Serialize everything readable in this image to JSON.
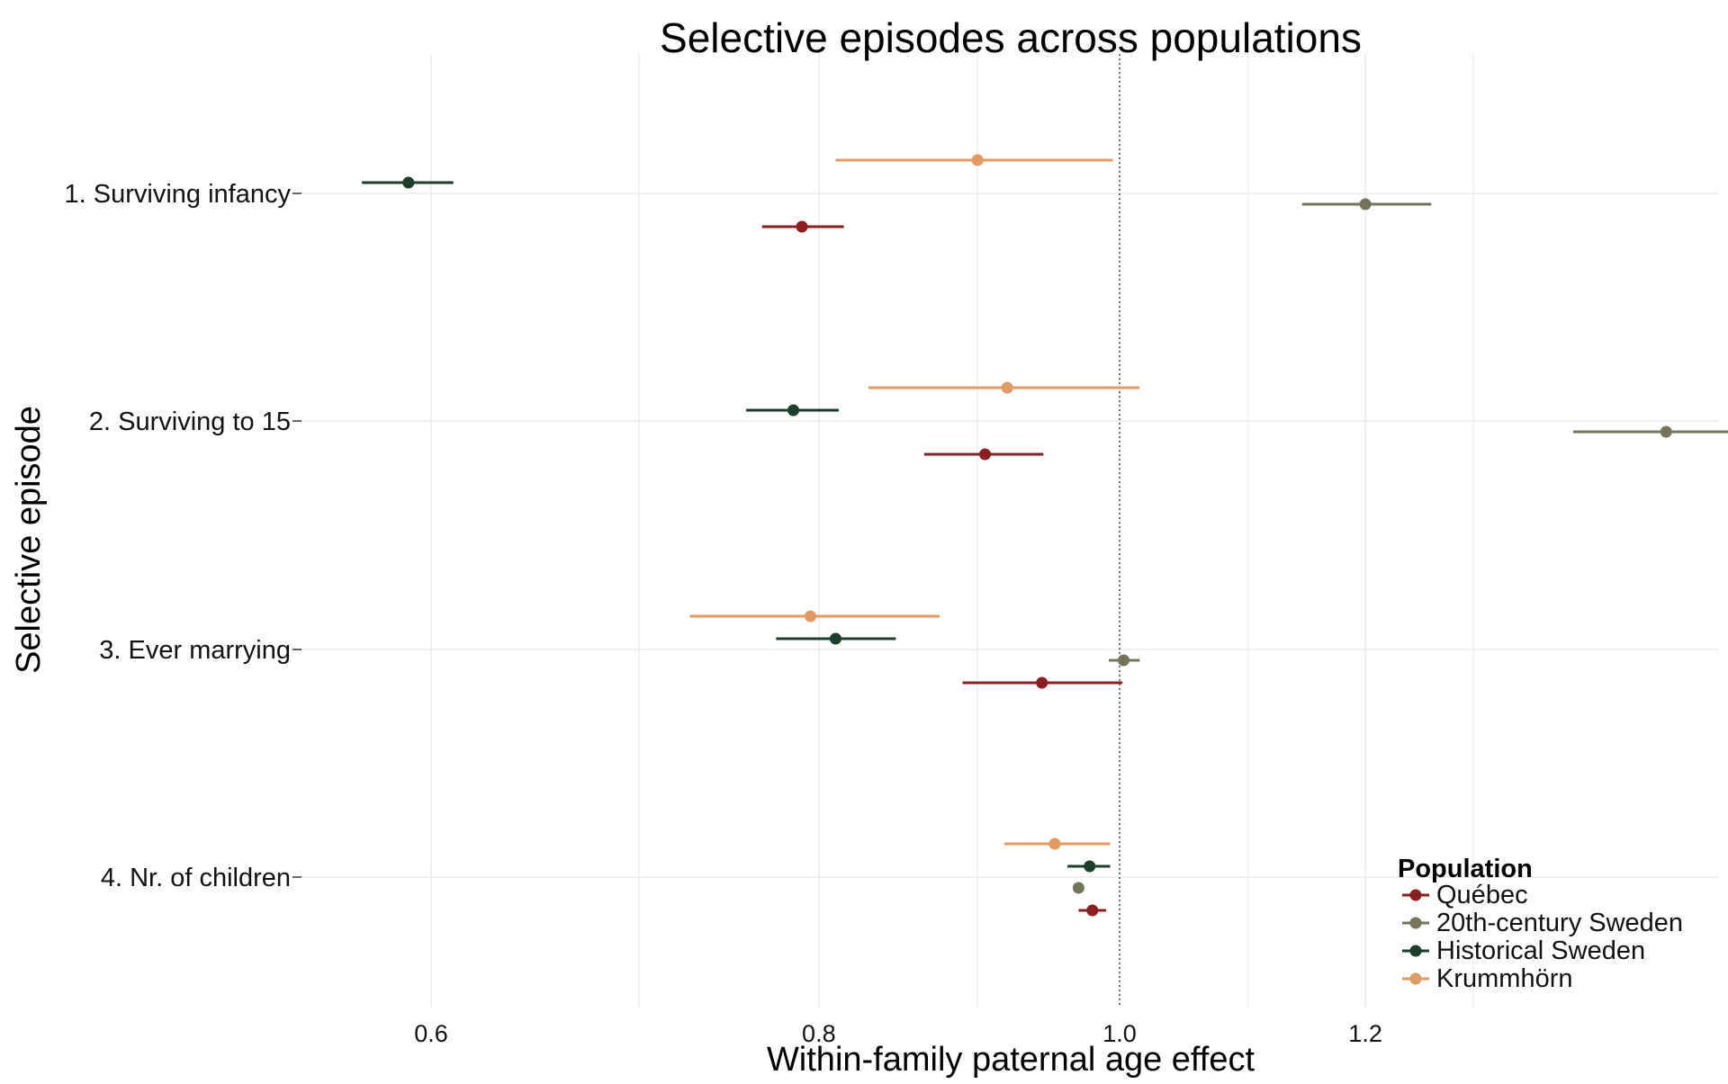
{
  "chart_data": {
    "type": "scatter",
    "title": "Selective episodes across populations",
    "xlabel": "Within-family paternal age effect",
    "ylabel": "Selective episode",
    "x_scale": "log",
    "xlim": [
      0.545,
      1.56
    ],
    "x_ticks": [
      {
        "value": 0.6,
        "label": "0.6"
      },
      {
        "value": 0.8,
        "label": "0.8"
      },
      {
        "value": 1.0,
        "label": "1.0"
      },
      {
        "value": 1.2,
        "label": "1.2"
      }
    ],
    "x_minor_gridlines": [
      0.7,
      0.9,
      1.1,
      1.3
    ],
    "reference_line": {
      "x": 1.0,
      "style": "dotted"
    },
    "categories": [
      "1. Surviving infancy",
      "2. Surviving to 15",
      "3. Ever marrying",
      "4. Nr. of children"
    ],
    "grid": true,
    "legend": {
      "title": "Population",
      "position": "bottom-right"
    },
    "series": [
      {
        "name": "Québec",
        "color": "#8b1e1e",
        "points": [
          {
            "category": "1. Surviving infancy",
            "estimate": 0.79,
            "lower": 0.767,
            "upper": 0.815
          },
          {
            "category": "2. Surviving to 15",
            "estimate": 0.905,
            "lower": 0.865,
            "upper": 0.945
          },
          {
            "category": "3. Ever marrying",
            "estimate": 0.944,
            "lower": 0.89,
            "upper": 1.002
          },
          {
            "category": "4. Nr. of children",
            "estimate": 0.98,
            "lower": 0.97,
            "upper": 0.99
          }
        ]
      },
      {
        "name": "20th-century Sweden",
        "color": "#74745a",
        "points": [
          {
            "category": "1. Surviving infancy",
            "estimate": 1.2,
            "lower": 1.145,
            "upper": 1.26
          },
          {
            "category": "2. Surviving to 15",
            "estimate": 1.5,
            "lower": 1.4,
            "upper": 1.64
          },
          {
            "category": "3. Ever marrying",
            "estimate": 1.003,
            "lower": 0.992,
            "upper": 1.015
          },
          {
            "category": "4. Nr. of children",
            "estimate": 0.97,
            "lower": 0.97,
            "upper": 0.97
          }
        ]
      },
      {
        "name": "Historical Sweden",
        "color": "#1b3f2a",
        "points": [
          {
            "category": "1. Surviving infancy",
            "estimate": 0.59,
            "lower": 0.57,
            "upper": 0.61
          },
          {
            "category": "2. Surviving to 15",
            "estimate": 0.785,
            "lower": 0.758,
            "upper": 0.812
          },
          {
            "category": "3. Ever marrying",
            "estimate": 0.81,
            "lower": 0.775,
            "upper": 0.847
          },
          {
            "category": "4. Nr. of children",
            "estimate": 0.978,
            "lower": 0.962,
            "upper": 0.993
          }
        ]
      },
      {
        "name": "Krummhörn",
        "color": "#e09a62",
        "points": [
          {
            "category": "1. Surviving infancy",
            "estimate": 0.9,
            "lower": 0.81,
            "upper": 0.995
          },
          {
            "category": "2. Surviving to 15",
            "estimate": 0.92,
            "lower": 0.83,
            "upper": 1.015
          },
          {
            "category": "3. Ever marrying",
            "estimate": 0.795,
            "lower": 0.727,
            "upper": 0.875
          },
          {
            "category": "4. Nr. of children",
            "estimate": 0.953,
            "lower": 0.918,
            "upper": 0.993
          }
        ]
      }
    ]
  }
}
